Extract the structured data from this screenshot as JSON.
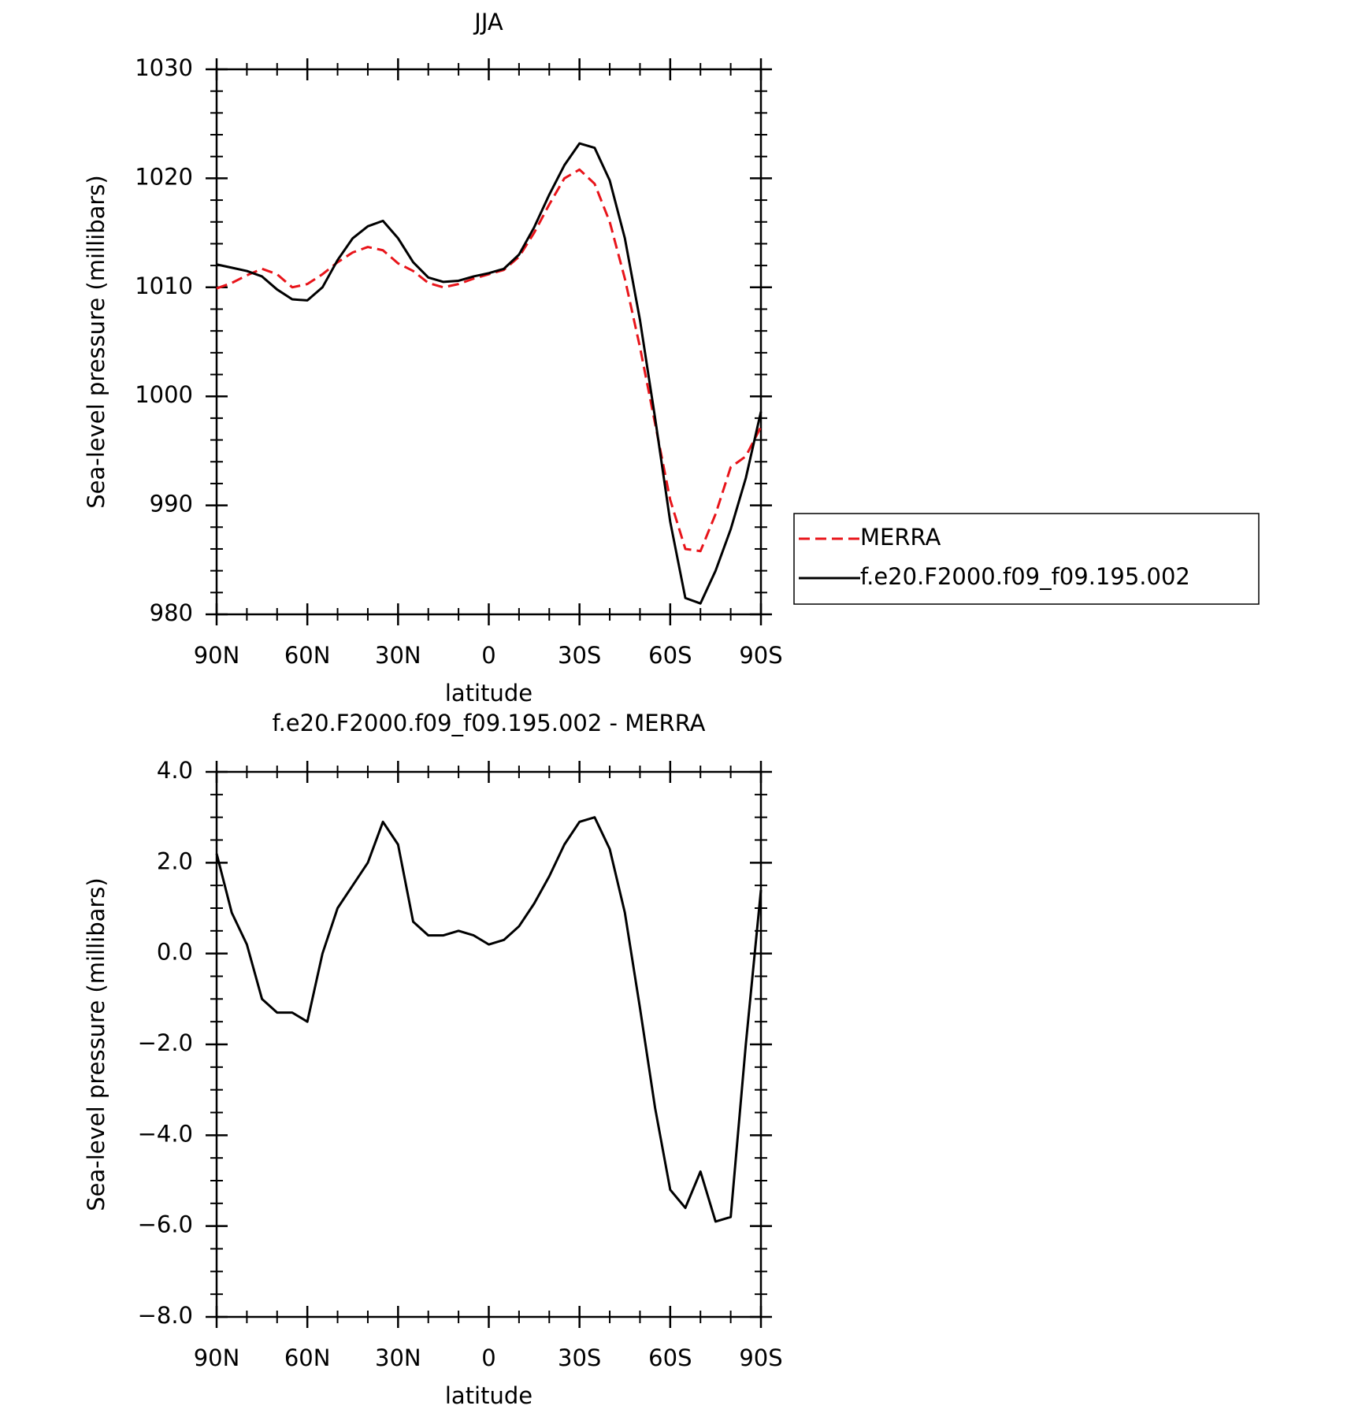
{
  "chart_data": [
    {
      "type": "line",
      "title": "JJA",
      "xlabel": "latitude",
      "ylabel": "Sea-level pressure (millibars)",
      "x": [
        90,
        85,
        80,
        75,
        70,
        65,
        60,
        55,
        50,
        45,
        40,
        35,
        30,
        25,
        20,
        15,
        10,
        5,
        0,
        -5,
        -10,
        -15,
        -20,
        -25,
        -30,
        -35,
        -40,
        -45,
        -50,
        -55,
        -60,
        -65,
        -70,
        -75,
        -80,
        -85,
        -90
      ],
      "xlim": [
        90,
        -90
      ],
      "xticks": [
        {
          "value": 90,
          "label": "90N"
        },
        {
          "value": 60,
          "label": "60N"
        },
        {
          "value": 30,
          "label": "30N"
        },
        0,
        {
          "value": -30,
          "label": "30S"
        },
        {
          "value": -60,
          "label": "60S"
        },
        {
          "value": -90,
          "label": "90S"
        }
      ],
      "ylim": [
        980,
        1030
      ],
      "yticks": [
        980,
        990,
        1000,
        1010,
        1020,
        1030
      ],
      "legend": "right",
      "series": [
        {
          "name": "MERRA",
          "color": "#e8141a",
          "dashed": true,
          "values": [
            1009.9,
            1010.4,
            1011.1,
            1011.7,
            1011.2,
            1010.0,
            1010.3,
            1011.2,
            1012.3,
            1013.2,
            1013.7,
            1013.4,
            1012.2,
            1011.5,
            1010.4,
            1010.0,
            1010.3,
            1010.8,
            1011.2,
            1011.6,
            1012.8,
            1015.0,
            1017.6,
            1020.0,
            1020.8,
            1019.5,
            1016.0,
            1010.8,
            1004.5,
            997.5,
            990.5,
            986.0,
            985.8,
            989.2,
            993.5,
            994.5,
            997.2
          ]
        },
        {
          "name": "f.e20.F2000.f09_f09.195.002",
          "color": "#000000",
          "dashed": false,
          "values": [
            1012.1,
            1011.8,
            1011.5,
            1011.0,
            1009.8,
            1008.9,
            1008.8,
            1010.0,
            1012.5,
            1014.5,
            1015.6,
            1016.1,
            1014.5,
            1012.3,
            1010.9,
            1010.5,
            1010.6,
            1011.0,
            1011.3,
            1011.7,
            1013.0,
            1015.5,
            1018.5,
            1021.2,
            1023.2,
            1022.8,
            1019.8,
            1014.5,
            1007.0,
            998.0,
            988.5,
            981.5,
            981.0,
            984.0,
            987.8,
            992.5,
            998.6
          ]
        }
      ]
    },
    {
      "type": "line",
      "title": "f.e20.F2000.f09_f09.195.002 - MERRA",
      "xlabel": "latitude",
      "ylabel": "Sea-level pressure (millibars)",
      "x": [
        90,
        85,
        80,
        75,
        70,
        65,
        60,
        55,
        50,
        45,
        40,
        35,
        30,
        25,
        20,
        15,
        10,
        5,
        0,
        -5,
        -10,
        -15,
        -20,
        -25,
        -30,
        -35,
        -40,
        -45,
        -50,
        -55,
        -60,
        -65,
        -70,
        -75,
        -80,
        -85,
        -90
      ],
      "xlim": [
        90,
        -90
      ],
      "xticks": [
        {
          "value": 90,
          "label": "90N"
        },
        {
          "value": 60,
          "label": "60N"
        },
        {
          "value": 30,
          "label": "30N"
        },
        0,
        {
          "value": -30,
          "label": "30S"
        },
        {
          "value": -60,
          "label": "60S"
        },
        {
          "value": -90,
          "label": "90S"
        }
      ],
      "ylim": [
        -8,
        4
      ],
      "yticks": [
        {
          "value": -8,
          "label": "−8.0"
        },
        {
          "value": -6,
          "label": "−6.0"
        },
        {
          "value": -4,
          "label": "−4.0"
        },
        {
          "value": -2,
          "label": "−2.0"
        },
        {
          "value": 0,
          "label": "0.0"
        },
        {
          "value": 2,
          "label": "2.0"
        },
        {
          "value": 4,
          "label": "4.0"
        }
      ],
      "series": [
        {
          "color": "#000000",
          "dashed": false,
          "values": [
            2.2,
            0.9,
            0.2,
            -1.0,
            -1.3,
            -1.3,
            -1.5,
            0.0,
            1.0,
            1.5,
            2.0,
            2.9,
            2.4,
            0.7,
            0.4,
            0.4,
            0.5,
            0.4,
            0.2,
            0.3,
            0.6,
            1.1,
            1.7,
            2.4,
            2.9,
            3.0,
            2.3,
            0.9,
            -1.2,
            -3.4,
            -5.2,
            -5.6,
            -4.8,
            -5.9,
            -5.8,
            -2.0,
            1.4
          ]
        }
      ]
    }
  ]
}
